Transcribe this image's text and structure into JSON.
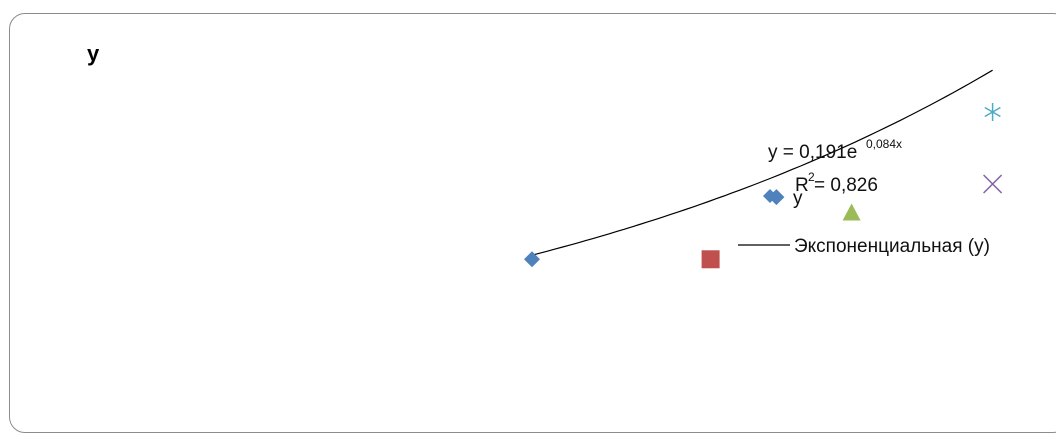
{
  "chart_data": {
    "type": "scatter",
    "title": "y",
    "xlabel": "",
    "ylabel": "",
    "xlim": [
      0,
      20
    ],
    "ylim": [
      0,
      1.1
    ],
    "grid": false,
    "points": [
      {
        "x": 10.0,
        "y": 0.43,
        "marker": "diamond",
        "color": "#4f81bd"
      },
      {
        "x": 13.8,
        "y": 0.43,
        "marker": "square",
        "color": "#c0504d"
      },
      {
        "x": 15.2,
        "y": 0.62,
        "marker": "diamond",
        "color": "#4f81bd"
      },
      {
        "x": 16.8,
        "y": 0.57,
        "marker": "triangle",
        "color": "#9bbb59"
      },
      {
        "x": 19.8,
        "y": 0.88,
        "marker": "asterisk",
        "color": "#4bacc6"
      },
      {
        "x": 19.8,
        "y": 0.66,
        "marker": "x",
        "color": "#8064a2"
      }
    ],
    "trendline": {
      "type": "exponential",
      "a": 0.191,
      "b": 0.084,
      "x_range": [
        10.0,
        19.8
      ],
      "color": "#000000",
      "label": "Экспоненциальная (y)"
    },
    "equation": {
      "prefix": "y = 0,191e",
      "exponent": "0,084x",
      "r2_prefix": "R",
      "r2_sup": "2",
      "r2_suffix": " = 0,826"
    },
    "legend": {
      "placement": "right",
      "entries": [
        {
          "label": "y",
          "marker": "diamond",
          "color": "#4f81bd"
        },
        {
          "label": "Экспоненциальная (y)",
          "marker": "line",
          "color": "#000000"
        }
      ]
    }
  }
}
